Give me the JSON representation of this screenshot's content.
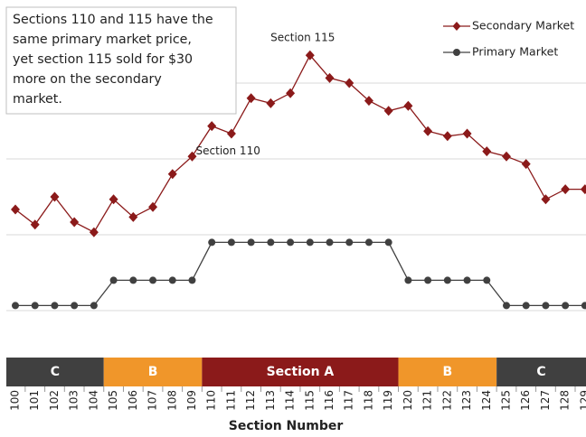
{
  "chart_data": {
    "type": "line",
    "xlabel": "Section Number",
    "categories": [
      "100",
      "101",
      "102",
      "103",
      "104",
      "105",
      "106",
      "107",
      "108",
      "109",
      "110",
      "111",
      "112",
      "113",
      "114",
      "115",
      "116",
      "117",
      "118",
      "119",
      "120",
      "121",
      "122",
      "123",
      "124",
      "125",
      "126",
      "127",
      "128",
      "129"
    ],
    "series": [
      {
        "name": "Secondary Market",
        "color": "#8b1a1a",
        "marker": "diamond",
        "values": [
          70,
          64,
          75,
          65,
          61,
          74,
          67,
          71,
          84,
          91,
          103,
          100,
          114,
          112,
          116,
          131,
          122,
          120,
          113,
          109,
          111,
          101,
          99,
          100,
          93,
          91,
          88,
          74,
          78,
          78
        ]
      },
      {
        "name": "Primary Market",
        "color": "#404040",
        "marker": "circle",
        "values": [
          32,
          32,
          32,
          32,
          32,
          42,
          42,
          42,
          42,
          42,
          57,
          57,
          57,
          57,
          57,
          57,
          57,
          57,
          57,
          57,
          42,
          42,
          42,
          42,
          42,
          32,
          32,
          32,
          32,
          32
        ]
      }
    ],
    "ylim": [
      12,
      150
    ],
    "yticks": [
      30,
      60,
      90,
      120
    ],
    "grid": true,
    "legend": "top-right",
    "zones": [
      {
        "label": "C",
        "first": "100",
        "last": "104",
        "color": "#404040"
      },
      {
        "label": "B",
        "first": "105",
        "last": "109",
        "color": "#f0962a"
      },
      {
        "label": "Section A",
        "first": "110",
        "last": "119",
        "color": "#8b1a1a"
      },
      {
        "label": "B",
        "first": "120",
        "last": "124",
        "color": "#f0962a"
      },
      {
        "label": "C",
        "first": "125",
        "last": "129",
        "color": "#404040"
      }
    ],
    "annotations": [
      {
        "text": "Section 115",
        "category": "115"
      },
      {
        "text": "Section 110",
        "category": "110"
      }
    ],
    "note": [
      "Sections 110 and 115 have the",
      "same primary market price,",
      "yet section 115 sold for $30",
      "more on the secondary",
      "market."
    ]
  }
}
